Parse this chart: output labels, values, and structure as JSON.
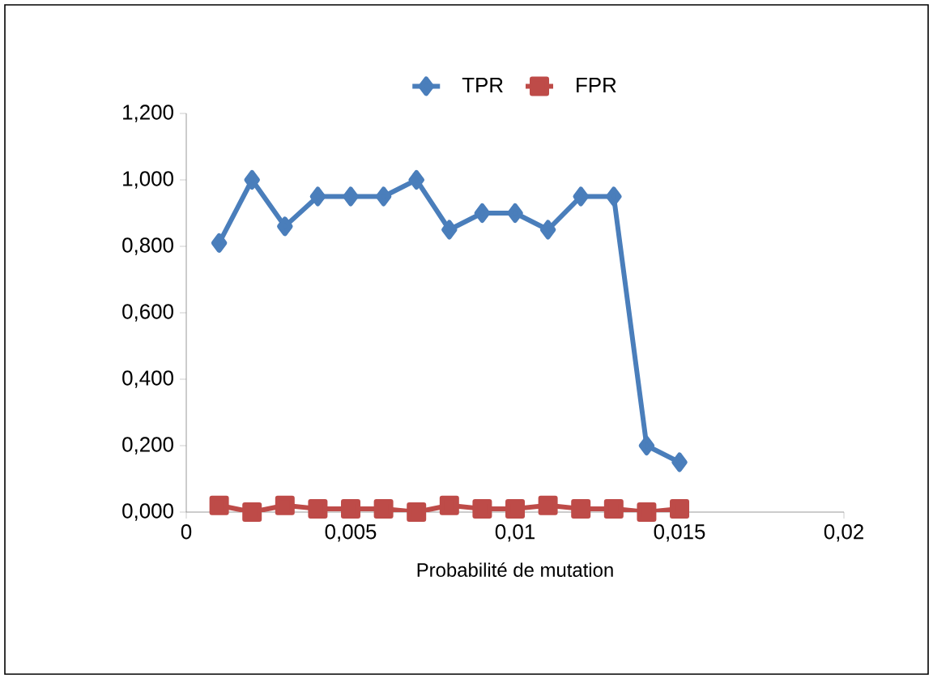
{
  "chart_data": {
    "type": "line",
    "xlabel": "Probabilité de mutation",
    "x": [
      0.001,
      0.002,
      0.003,
      0.004,
      0.005,
      0.006,
      0.007,
      0.008,
      0.009,
      0.01,
      0.011,
      0.012,
      0.013,
      0.014,
      0.015
    ],
    "series": [
      {
        "name": "TPR",
        "color": "#4a7ebb",
        "marker": "diamond",
        "values": [
          0.81,
          1.0,
          0.86,
          0.95,
          0.95,
          0.95,
          1.0,
          0.85,
          0.9,
          0.9,
          0.85,
          0.95,
          0.95,
          0.2,
          0.15
        ]
      },
      {
        "name": "FPR",
        "color": "#be4b48",
        "marker": "square",
        "values": [
          0.02,
          0.0,
          0.02,
          0.01,
          0.01,
          0.01,
          0.0,
          0.02,
          0.01,
          0.01,
          0.02,
          0.01,
          0.01,
          0.0,
          0.01
        ]
      }
    ],
    "xlim": [
      0,
      0.02
    ],
    "xticks": [
      {
        "value": 0,
        "label": "0"
      },
      {
        "value": 0.005,
        "label": "0,005"
      },
      {
        "value": 0.01,
        "label": "0,01"
      },
      {
        "value": 0.015,
        "label": "0,015"
      },
      {
        "value": 0.02,
        "label": "0,02"
      }
    ],
    "ylim": [
      0,
      1.2
    ],
    "yticks": [
      {
        "value": 0,
        "label": "0,000"
      },
      {
        "value": 0.2,
        "label": "0,200"
      },
      {
        "value": 0.4,
        "label": "0,400"
      },
      {
        "value": 0.6,
        "label": "0,600"
      },
      {
        "value": 0.8,
        "label": "0,800"
      },
      {
        "value": 1.0,
        "label": "1,000"
      },
      {
        "value": 1.2,
        "label": "1,200"
      }
    ],
    "grid": false,
    "legend": "top",
    "line_style": "solid"
  }
}
